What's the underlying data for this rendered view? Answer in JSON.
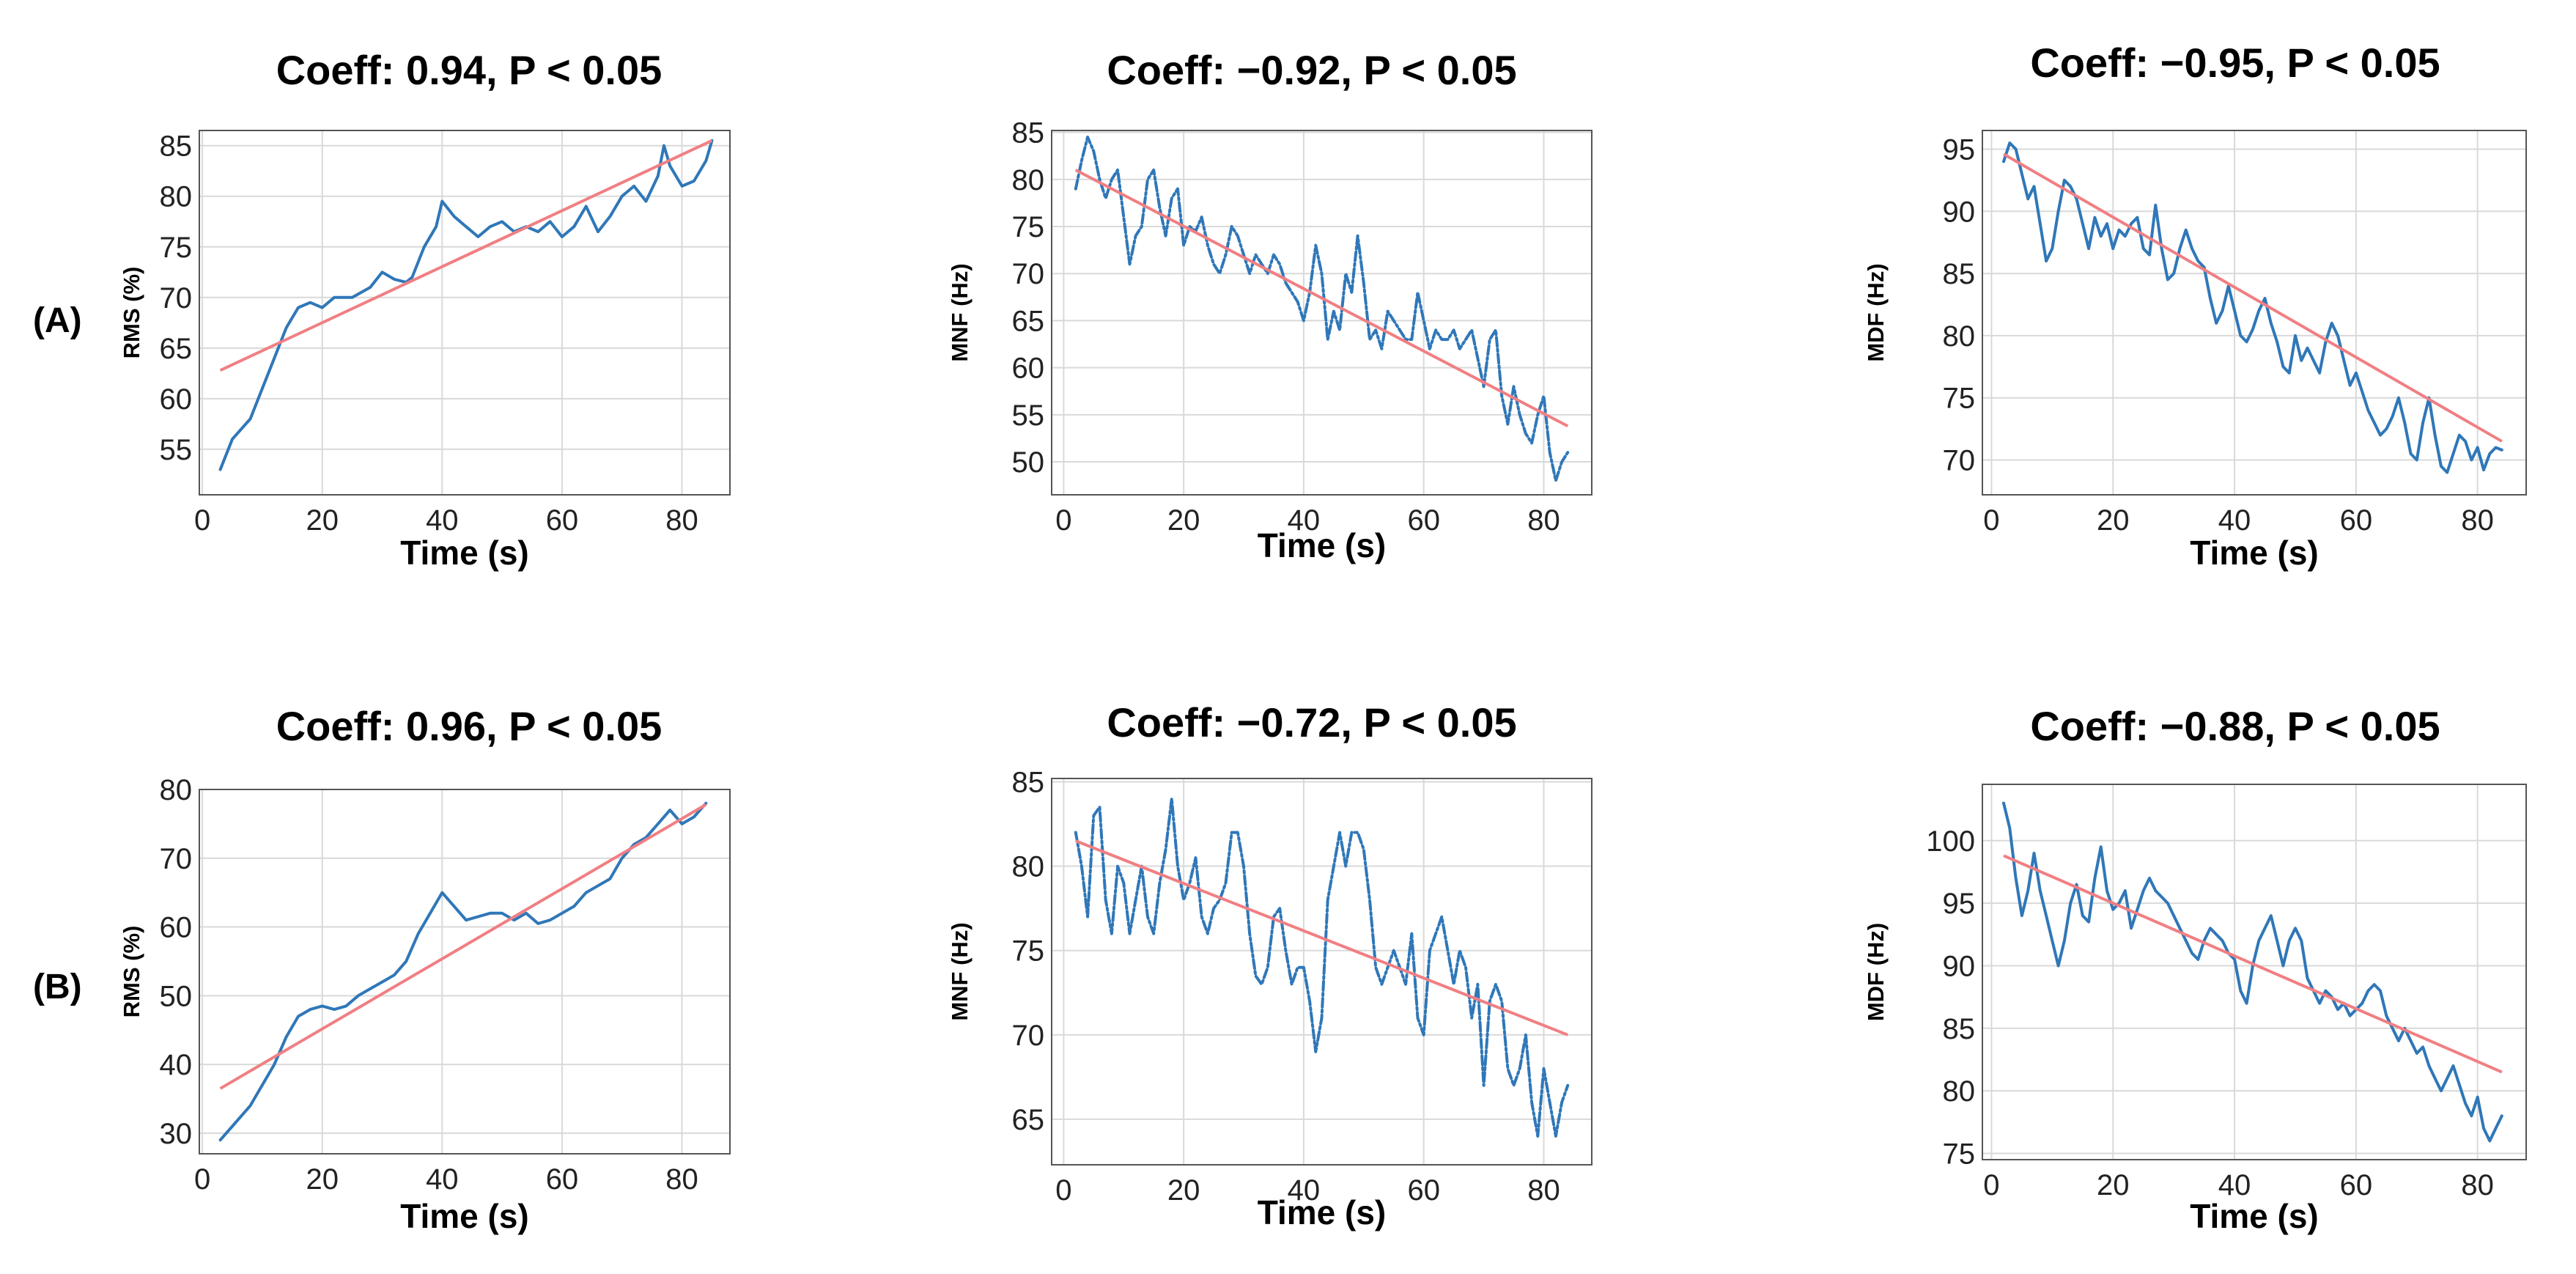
{
  "row_labels": [
    "(A)",
    "(B)"
  ],
  "colors": {
    "data": "#2f77b8",
    "fit": "#f07f83",
    "grid": "#d9d9d9",
    "frame": "#555555"
  },
  "chart_data": [
    {
      "type": "line",
      "panel": "A-RMS",
      "title": "Coeff: 0.94, P < 0.05",
      "xlabel": "Time (s)",
      "ylabel": "RMS (%)",
      "xlim": [
        -0.5,
        88
      ],
      "ylim": [
        50.5,
        86.5
      ],
      "xticks": [
        0,
        20,
        40,
        60,
        80
      ],
      "yticks": [
        55,
        60,
        65,
        70,
        75,
        80,
        85
      ],
      "line_style": "solid",
      "series": [
        {
          "name": "RMS",
          "x": [
            3,
            5,
            8,
            10,
            12,
            14,
            16,
            18,
            20,
            22,
            25,
            28,
            30,
            32,
            34,
            35,
            37,
            39,
            40,
            42,
            44,
            46,
            48,
            50,
            52,
            54,
            56,
            58,
            60,
            62,
            64,
            66,
            68,
            70,
            72,
            74,
            76,
            77,
            78,
            80,
            82,
            84,
            85
          ],
          "y": [
            53,
            56,
            58,
            61,
            64,
            67,
            69,
            69.5,
            69,
            70,
            70,
            71,
            72.5,
            71.8,
            71.5,
            72,
            75,
            77,
            79.5,
            78,
            77,
            76,
            77,
            77.5,
            76.5,
            77,
            76.5,
            77.5,
            76,
            77,
            79,
            76.5,
            78,
            80,
            81,
            79.5,
            82,
            85,
            83,
            81,
            81.5,
            83.5,
            85.5
          ]
        }
      ],
      "fit": {
        "x": [
          3,
          85
        ],
        "y": [
          62.8,
          85.5
        ]
      }
    },
    {
      "type": "line",
      "panel": "A-MNF",
      "title": "Coeff: −0.92, P < 0.05",
      "xlabel": "Time (s)",
      "ylabel": "MNF (Hz)",
      "xlim": [
        -2,
        88
      ],
      "ylim": [
        46.5,
        85.2
      ],
      "xticks": [
        0,
        20,
        40,
        60,
        80
      ],
      "yticks": [
        50,
        55,
        60,
        65,
        70,
        75,
        80,
        85
      ],
      "line_style": "dashdot",
      "series": [
        {
          "name": "MNF",
          "x": [
            2,
            3,
            4,
            5,
            6,
            7,
            8,
            9,
            10,
            11,
            12,
            13,
            14,
            15,
            16,
            17,
            18,
            19,
            20,
            21,
            22,
            23,
            24,
            25,
            26,
            27,
            28,
            29,
            30,
            31,
            32,
            33,
            34,
            35,
            36,
            37,
            38,
            39,
            40,
            41,
            42,
            43,
            44,
            45,
            46,
            47,
            48,
            49,
            50,
            51,
            52,
            53,
            54,
            55,
            56,
            57,
            58,
            59,
            60,
            61,
            62,
            63,
            64,
            65,
            66,
            67,
            68,
            69,
            70,
            71,
            72,
            73,
            74,
            75,
            76,
            77,
            78,
            79,
            80,
            81,
            82,
            83,
            84
          ],
          "y": [
            79,
            82,
            84.5,
            83,
            80,
            78,
            80,
            81,
            76,
            71,
            74,
            75,
            80,
            81,
            77,
            74,
            78,
            79,
            73,
            75,
            74.5,
            76,
            73,
            71,
            70,
            72,
            75,
            74,
            72,
            70,
            72,
            71,
            70,
            72,
            71,
            69,
            68,
            67,
            65,
            68,
            73,
            70,
            63,
            66,
            64,
            70,
            68,
            74,
            69,
            63,
            64,
            62,
            66,
            65,
            64,
            63,
            63,
            68,
            65,
            62,
            64,
            63,
            63,
            64,
            62,
            63,
            64,
            61,
            58,
            63,
            64,
            57,
            54,
            58,
            55,
            53,
            52,
            55,
            57,
            51,
            48,
            50,
            51
          ]
        }
      ],
      "fit": {
        "x": [
          2,
          84
        ],
        "y": [
          81,
          53.8
        ]
      }
    },
    {
      "type": "line",
      "panel": "A-MDF",
      "title": "Coeff: −0.95, P < 0.05",
      "xlabel": "Time (s)",
      "ylabel": "MDF (Hz)",
      "xlim": [
        -1.5,
        88
      ],
      "ylim": [
        67.2,
        96.5
      ],
      "xticks": [
        0,
        20,
        40,
        60,
        80
      ],
      "yticks": [
        70,
        75,
        80,
        85,
        90,
        95
      ],
      "line_style": "solid",
      "series": [
        {
          "name": "MDF",
          "x": [
            2,
            3,
            4,
            5,
            6,
            7,
            8,
            9,
            10,
            11,
            12,
            13,
            14,
            15,
            16,
            17,
            18,
            19,
            20,
            21,
            22,
            23,
            24,
            25,
            26,
            27,
            28,
            29,
            30,
            31,
            32,
            33,
            34,
            35,
            36,
            37,
            38,
            39,
            40,
            41,
            42,
            43,
            44,
            45,
            46,
            47,
            48,
            49,
            50,
            51,
            52,
            53,
            54,
            55,
            56,
            57,
            58,
            59,
            60,
            61,
            62,
            63,
            64,
            65,
            66,
            67,
            68,
            69,
            70,
            71,
            72,
            73,
            74,
            75,
            76,
            77,
            78,
            79,
            80,
            81,
            82,
            83,
            84
          ],
          "y": [
            94,
            95.5,
            95,
            93,
            91,
            92,
            89,
            86,
            87,
            90,
            92.5,
            92,
            91,
            89,
            87,
            89.5,
            88,
            89,
            87,
            88.5,
            88,
            89,
            89.5,
            87,
            86.5,
            90.5,
            87,
            84.5,
            85,
            87,
            88.5,
            87,
            86,
            85.5,
            83,
            81,
            82,
            84,
            82,
            80,
            79.5,
            80.5,
            82,
            83,
            81,
            79.5,
            77.5,
            77,
            80,
            78,
            79,
            78,
            77,
            79.5,
            81,
            80,
            78,
            76,
            77,
            75.5,
            74,
            73,
            72,
            72.5,
            73.5,
            75,
            73,
            70.5,
            70,
            73,
            75,
            72,
            69.5,
            69,
            70.5,
            72,
            71.5,
            70,
            71,
            69.2,
            70.5,
            71,
            70.8
          ]
        }
      ],
      "fit": {
        "x": [
          2,
          84
        ],
        "y": [
          94.6,
          71.5
        ]
      }
    },
    {
      "type": "line",
      "panel": "B-RMS",
      "title": "Coeff: 0.96, P < 0.05",
      "xlabel": "Time (s)",
      "ylabel": "RMS (%)",
      "xlim": [
        -0.5,
        88
      ],
      "ylim": [
        27,
        80
      ],
      "xticks": [
        0,
        20,
        40,
        60,
        80
      ],
      "yticks": [
        30,
        40,
        50,
        60,
        70,
        80
      ],
      "line_style": "solid",
      "series": [
        {
          "name": "RMS",
          "x": [
            3,
            5,
            8,
            10,
            12,
            14,
            16,
            18,
            20,
            22,
            24,
            26,
            28,
            30,
            32,
            34,
            36,
            38,
            40,
            42,
            44,
            46,
            48,
            50,
            52,
            54,
            56,
            58,
            60,
            62,
            64,
            66,
            68,
            70,
            72,
            74,
            76,
            78,
            79,
            80,
            82,
            84
          ],
          "y": [
            29,
            31,
            34,
            37,
            40,
            44,
            47,
            48,
            48.5,
            48,
            48.5,
            50,
            51,
            52,
            53,
            55,
            59,
            62,
            65,
            63,
            61,
            61.5,
            62,
            62,
            61,
            62,
            60.5,
            61,
            62,
            63,
            65,
            66,
            67,
            70,
            72,
            73,
            75,
            77,
            76,
            75,
            76,
            78
          ]
        }
      ],
      "fit": {
        "x": [
          3,
          84
        ],
        "y": [
          36.5,
          77.8
        ]
      }
    },
    {
      "type": "line",
      "panel": "B-MNF",
      "title": "Coeff: −0.72, P < 0.05",
      "xlabel": "Time (s)",
      "ylabel": "MNF (Hz)",
      "xlim": [
        -2,
        88
      ],
      "ylim": [
        62.3,
        85.2
      ],
      "xticks": [
        0,
        20,
        40,
        60,
        80
      ],
      "yticks": [
        65,
        70,
        75,
        80,
        85
      ],
      "line_style": "dashdot",
      "series": [
        {
          "name": "MNF",
          "x": [
            2,
            3,
            4,
            5,
            6,
            7,
            8,
            9,
            10,
            11,
            12,
            13,
            14,
            15,
            16,
            17,
            18,
            19,
            20,
            21,
            22,
            23,
            24,
            25,
            26,
            27,
            28,
            29,
            30,
            31,
            32,
            33,
            34,
            35,
            36,
            37,
            38,
            39,
            40,
            41,
            42,
            43,
            44,
            45,
            46,
            47,
            48,
            49,
            50,
            51,
            52,
            53,
            54,
            55,
            56,
            57,
            58,
            59,
            60,
            61,
            62,
            63,
            64,
            65,
            66,
            67,
            68,
            69,
            70,
            71,
            72,
            73,
            74,
            75,
            76,
            77,
            78,
            79,
            80,
            81,
            82,
            83,
            84
          ],
          "y": [
            82,
            80,
            77,
            83,
            83.5,
            78,
            76,
            80,
            79,
            76,
            78,
            80,
            77,
            76,
            79,
            81,
            84,
            80,
            78,
            79,
            80.5,
            77,
            76,
            77.5,
            78,
            79,
            82,
            82,
            80,
            76,
            73.5,
            73,
            74,
            77,
            77.5,
            75,
            73,
            74,
            74,
            72,
            69,
            71,
            78,
            80,
            82,
            80,
            82,
            82,
            81,
            78,
            74,
            73,
            74,
            75,
            74,
            73,
            76,
            71,
            70,
            75,
            76,
            77,
            75,
            73,
            75,
            74,
            71,
            73,
            67,
            72,
            73,
            72,
            68,
            67,
            68,
            70,
            66,
            64,
            68,
            66,
            64,
            66,
            67
          ]
        }
      ],
      "fit": {
        "x": [
          2,
          84
        ],
        "y": [
          81.5,
          70
        ]
      }
    },
    {
      "type": "line",
      "panel": "B-MDF",
      "title": "Coeff: −0.88, P < 0.05",
      "xlabel": "Time (s)",
      "ylabel": "MDF (Hz)",
      "xlim": [
        -1.5,
        88
      ],
      "ylim": [
        74.5,
        104.5
      ],
      "xticks": [
        0,
        20,
        40,
        60,
        80
      ],
      "yticks": [
        75,
        80,
        85,
        90,
        95,
        100
      ],
      "line_style": "solid",
      "series": [
        {
          "name": "MDF",
          "x": [
            2,
            3,
            4,
            5,
            6,
            7,
            8,
            9,
            10,
            11,
            12,
            13,
            14,
            15,
            16,
            17,
            18,
            19,
            20,
            21,
            22,
            23,
            24,
            25,
            26,
            27,
            28,
            29,
            30,
            31,
            32,
            33,
            34,
            35,
            36,
            37,
            38,
            39,
            40,
            41,
            42,
            43,
            44,
            45,
            46,
            47,
            48,
            49,
            50,
            51,
            52,
            53,
            54,
            55,
            56,
            57,
            58,
            59,
            60,
            61,
            62,
            63,
            64,
            65,
            66,
            67,
            68,
            69,
            70,
            71,
            72,
            73,
            74,
            75,
            76,
            77,
            78,
            79,
            80,
            81,
            82,
            83,
            84
          ],
          "y": [
            103,
            101,
            97,
            94,
            96,
            99,
            96,
            94,
            92,
            90,
            92,
            95,
            96.5,
            94,
            93.5,
            97,
            99.5,
            96,
            94.5,
            95,
            96,
            93,
            94.5,
            96,
            97,
            96,
            95.5,
            95,
            94,
            93,
            92,
            91,
            90.5,
            92,
            93,
            92.5,
            92,
            91,
            90.5,
            88,
            87,
            90,
            92,
            93,
            94,
            92,
            90,
            92,
            93,
            92,
            89,
            88,
            87,
            88,
            87.5,
            86.5,
            87,
            86,
            86.5,
            87,
            88,
            88.5,
            88,
            86,
            85,
            84,
            85,
            84,
            83,
            83.5,
            82,
            81,
            80,
            81,
            82,
            80.5,
            79,
            78,
            79.5,
            77,
            76,
            77,
            78
          ]
        }
      ],
      "fit": {
        "x": [
          2,
          84
        ],
        "y": [
          98.8,
          81.5
        ]
      }
    }
  ]
}
